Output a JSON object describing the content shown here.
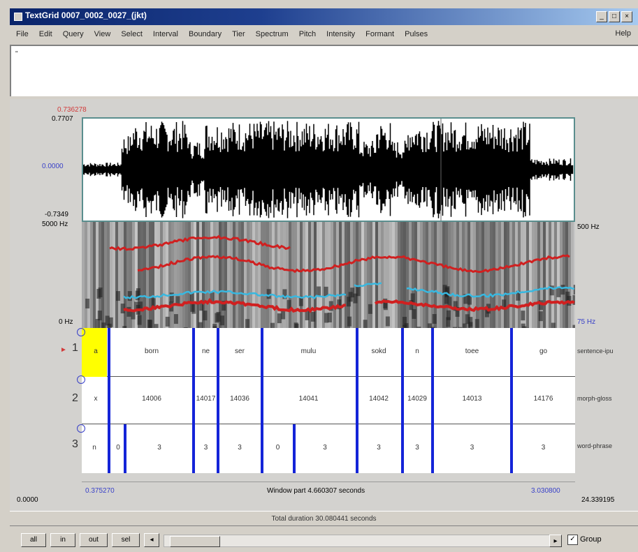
{
  "window": {
    "title": "TextGrid 0007_0002_0027_(jkt)",
    "buttons": [
      "_",
      "□",
      "×"
    ]
  },
  "menu": {
    "items": [
      "File",
      "Edit",
      "Query",
      "View",
      "Select",
      "Interval",
      "Boundary",
      "Tier",
      "Spectrum",
      "Pitch",
      "Intensity",
      "Formant",
      "Pulses"
    ],
    "help": "Help"
  },
  "text_area": {
    "value": "\""
  },
  "waveform": {
    "top_value": "0.7707",
    "top_red": "0.736278",
    "zero_value": "0.0000",
    "bottom_value": "-0.7349"
  },
  "spectrogram": {
    "freq_top": "5000 Hz",
    "freq_bottom": "0 Hz",
    "pitch_top": "500 Hz",
    "pitch_bottom": "75 Hz"
  },
  "tiers": [
    {
      "number": "1",
      "name": "sentence-ipu",
      "intervals": [
        "a",
        "born",
        "ne",
        "ser",
        "mulu",
        "sokd",
        "n",
        "toee",
        "go"
      ]
    },
    {
      "number": "2",
      "name": "morph-gloss",
      "intervals": [
        "x",
        "14006",
        "14017",
        "14036",
        "14041",
        "14042",
        "14029",
        "14013",
        "14176"
      ]
    },
    {
      "number": "3",
      "name": "word-phrase",
      "intervals": [
        "n",
        "0",
        "3",
        "3",
        "3",
        "0",
        "3",
        "3",
        "3",
        "3",
        "3"
      ]
    }
  ],
  "time": {
    "left_sel": "0.375270",
    "right_sel": "3.030800",
    "visible_window": "Window part 4.660307 seconds",
    "left_total": "0.0000",
    "right_total": "24.339195",
    "total_duration": "Total duration 30.080441 seconds"
  },
  "controls": {
    "buttons": [
      "all",
      "in",
      "out",
      "sel"
    ],
    "group_label": "Group",
    "group_checked": true
  },
  "colors": {
    "boundary": "#1424d8",
    "pitch": "#38b8e0",
    "formant": "#d02020",
    "selected_interval": "#ffff00"
  }
}
